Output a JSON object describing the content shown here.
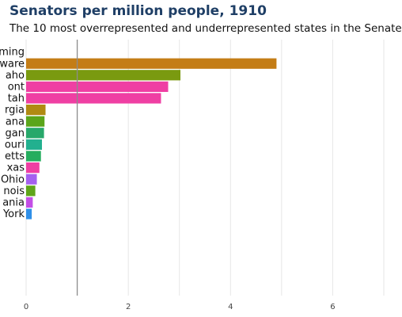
{
  "chart_data": {
    "type": "bar",
    "orientation": "horizontal",
    "title": "Senators per million people, 1910",
    "subtitle": "The 10 most overrepresented and underrepresented states in the Senate",
    "xlabel": "",
    "ylabel": "",
    "xlim": [
      0,
      7
    ],
    "x_ticks": [
      0,
      2,
      4,
      6
    ],
    "grid": "vertical",
    "reference_line": 1,
    "categories": [
      "ming",
      "ware",
      "aho",
      "ont",
      "tah",
      "rgia",
      "ana",
      "gan",
      "ouri",
      "etts",
      "xas",
      "Ohio",
      "nois",
      "ania",
      "York"
    ],
    "values": [
      0,
      4.9,
      3.02,
      2.78,
      2.64,
      0.38,
      0.36,
      0.35,
      0.31,
      0.29,
      0.26,
      0.21,
      0.18,
      0.13,
      0.11
    ],
    "colors": [
      "#c47d16",
      "#c47d16",
      "#7a9a10",
      "#ef3fa3",
      "#ef3fa3",
      "#b08a12",
      "#5aa51a",
      "#27a86a",
      "#22b08f",
      "#26ad5e",
      "#ef3fa3",
      "#a560f0",
      "#5fa51a",
      "#c34ee6",
      "#2f8fe8"
    ]
  }
}
